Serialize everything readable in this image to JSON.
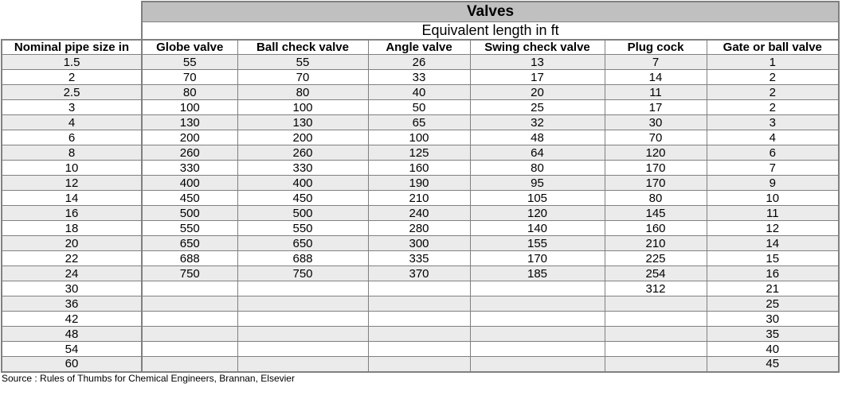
{
  "table": {
    "title": "Valves",
    "subtitle": "Equivalent length in ft",
    "columns": [
      "Nominal pipe size in",
      "Globe valve",
      "Ball check valve",
      "Angle valve",
      "Swing check valve",
      "Plug cock",
      "Gate or ball valve"
    ],
    "rows": [
      [
        "1.5",
        "55",
        "55",
        "26",
        "13",
        "7",
        "1"
      ],
      [
        "2",
        "70",
        "70",
        "33",
        "17",
        "14",
        "2"
      ],
      [
        "2.5",
        "80",
        "80",
        "40",
        "20",
        "11",
        "2"
      ],
      [
        "3",
        "100",
        "100",
        "50",
        "25",
        "17",
        "2"
      ],
      [
        "4",
        "130",
        "130",
        "65",
        "32",
        "30",
        "3"
      ],
      [
        "6",
        "200",
        "200",
        "100",
        "48",
        "70",
        "4"
      ],
      [
        "8",
        "260",
        "260",
        "125",
        "64",
        "120",
        "6"
      ],
      [
        "10",
        "330",
        "330",
        "160",
        "80",
        "170",
        "7"
      ],
      [
        "12",
        "400",
        "400",
        "190",
        "95",
        "170",
        "9"
      ],
      [
        "14",
        "450",
        "450",
        "210",
        "105",
        "80",
        "10"
      ],
      [
        "16",
        "500",
        "500",
        "240",
        "120",
        "145",
        "11"
      ],
      [
        "18",
        "550",
        "550",
        "280",
        "140",
        "160",
        "12"
      ],
      [
        "20",
        "650",
        "650",
        "300",
        "155",
        "210",
        "14"
      ],
      [
        "22",
        "688",
        "688",
        "335",
        "170",
        "225",
        "15"
      ],
      [
        "24",
        "750",
        "750",
        "370",
        "185",
        "254",
        "16"
      ],
      [
        "30",
        "",
        "",
        "",
        "",
        "312",
        "21"
      ],
      [
        "36",
        "",
        "",
        "",
        "",
        "",
        "25"
      ],
      [
        "42",
        "",
        "",
        "",
        "",
        "",
        "30"
      ],
      [
        "48",
        "",
        "",
        "",
        "",
        "",
        "35"
      ],
      [
        "54",
        "",
        "",
        "",
        "",
        "",
        "40"
      ],
      [
        "60",
        "",
        "",
        "",
        "",
        "",
        "45"
      ]
    ]
  },
  "source": "Source : Rules of Thumbs for Chemical Engineers, Brannan, Elsevier",
  "colors": {
    "title_background": "#c0c0c0",
    "shaded_row": "#ebebeb",
    "grid_line": "#808080"
  }
}
